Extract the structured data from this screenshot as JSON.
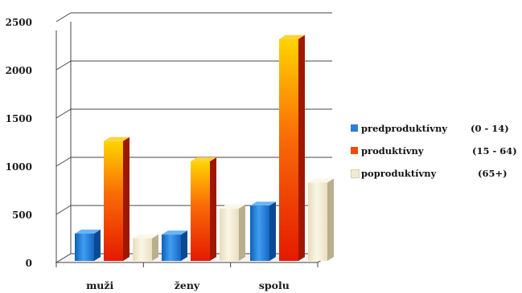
{
  "chart_data": {
    "type": "bar",
    "categories": [
      "muži",
      "ženy",
      "spolu"
    ],
    "series": [
      {
        "name": "predproduktívny",
        "range": "(0 - 14)",
        "values": [
          300,
          290,
          590
        ],
        "color": "#2a7fd8"
      },
      {
        "name": "produktívny",
        "range": "(15 - 64)",
        "values": [
          1260,
          1050,
          2320
        ],
        "color": "#f24a08"
      },
      {
        "name": "poproduktívny",
        "range": "(65+)",
        "values": [
          250,
          560,
          830
        ],
        "color": "#f1ead2"
      }
    ],
    "ylim": [
      0,
      2500
    ],
    "yticks": [
      "0",
      "500",
      "1000",
      "1500",
      "2000",
      "2500"
    ],
    "xlabel": "",
    "ylabel": "",
    "title": "",
    "grid": true,
    "legend_position": "right"
  }
}
